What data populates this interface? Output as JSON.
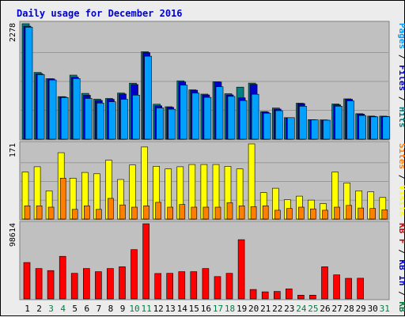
{
  "title": "Daily usage for December 2016",
  "colors": {
    "weekday": "#000000",
    "weekend": "#008040",
    "separator": "#000000"
  },
  "chart_data": [
    {
      "type": "bar",
      "categories": [
        "1",
        "2",
        "3",
        "4",
        "5",
        "6",
        "7",
        "8",
        "9",
        "10",
        "11",
        "12",
        "13",
        "14",
        "15",
        "16",
        "17",
        "18",
        "19",
        "20",
        "21",
        "22",
        "23",
        "24",
        "25",
        "26",
        "27",
        "28",
        "29",
        "30",
        "31"
      ],
      "y_max_label": "2278",
      "ylim": [
        0,
        2278
      ],
      "grid": true,
      "side_label": [
        {
          "text": "Pages",
          "color": "#00a0ff"
        },
        {
          "text": " / ",
          "color": "#000000"
        },
        {
          "text": "Files",
          "color": "#0000cc"
        },
        {
          "text": " / ",
          "color": "#000000"
        },
        {
          "text": "Hits",
          "color": "#008080"
        }
      ],
      "series": [
        {
          "name": "Hits",
          "color": "#008080",
          "values": [
            2278,
            1317,
            1194,
            840,
            1264,
            904,
            789,
            803,
            909,
            1104,
            1725,
            689,
            640,
            1151,
            973,
            889,
            1131,
            897,
            1027,
            1106,
            545,
            615,
            424,
            710,
            386,
            381,
            695,
            795,
            503,
            456,
            454
          ]
        },
        {
          "name": "Files",
          "color": "#0000cc",
          "values": [
            2230,
            1292,
            1189,
            833,
            1223,
            866,
            765,
            786,
            893,
            1078,
            1708,
            659,
            628,
            1128,
            966,
            872,
            1128,
            873,
            816,
            1082,
            534,
            593,
            419,
            702,
            380,
            375,
            677,
            788,
            495,
            450,
            449
          ]
        },
        {
          "name": "Pages",
          "color": "#00a0ff",
          "values": [
            2209,
            1274,
            1168,
            823,
            1197,
            804,
            712,
            738,
            786,
            869,
            1636,
            617,
            592,
            1065,
            908,
            826,
            1034,
            844,
            762,
            887,
            511,
            561,
            424,
            650,
            380,
            375,
            651,
            753,
            466,
            440,
            443
          ]
        }
      ]
    },
    {
      "type": "bar",
      "categories": [
        "1",
        "2",
        "3",
        "4",
        "5",
        "6",
        "7",
        "8",
        "9",
        "10",
        "11",
        "12",
        "13",
        "14",
        "15",
        "16",
        "17",
        "18",
        "19",
        "20",
        "21",
        "22",
        "23",
        "24",
        "25",
        "26",
        "27",
        "28",
        "29",
        "30",
        "31"
      ],
      "y_max_label": "171",
      "ylim": [
        0,
        171
      ],
      "grid": true,
      "side_label": [
        {
          "text": "Sites",
          "color": "#ff8000"
        },
        {
          "text": " / ",
          "color": "#000000"
        },
        {
          "text": "Visits",
          "color": "#ffff00"
        }
      ],
      "series": [
        {
          "name": "Visits",
          "color": "#ffff00",
          "values": [
            107,
            119,
            64,
            151,
            93,
            106,
            103,
            134,
            90,
            123,
            164,
            120,
            114,
            119,
            124,
            124,
            124,
            120,
            114,
            171,
            60,
            70,
            44,
            52,
            43,
            35,
            107,
            82,
            64,
            62,
            49
          ]
        },
        {
          "name": "Sites",
          "color": "#ff8000",
          "values": [
            30,
            30,
            27,
            93,
            22,
            30,
            22,
            47,
            32,
            27,
            30,
            38,
            27,
            33,
            27,
            27,
            27,
            37,
            30,
            28,
            30,
            20,
            24,
            27,
            23,
            20,
            27,
            31,
            25,
            24,
            21
          ]
        }
      ]
    },
    {
      "type": "bar",
      "categories": [
        "1",
        "2",
        "3",
        "4",
        "5",
        "6",
        "7",
        "8",
        "9",
        "10",
        "11",
        "12",
        "13",
        "14",
        "15",
        "16",
        "17",
        "18",
        "19",
        "20",
        "21",
        "22",
        "23",
        "24",
        "25",
        "26",
        "27",
        "28",
        "29",
        "30",
        "31"
      ],
      "y_max_label": "98614",
      "ylim": [
        0,
        98614
      ],
      "grid": false,
      "side_label": [
        {
          "text": "KB F",
          "color": "#cc0000"
        },
        {
          "text": " / ",
          "color": "#000000"
        },
        {
          "text": "KB In",
          "color": "#0000cc"
        },
        {
          "text": " / ",
          "color": "#000000"
        },
        {
          "text": "KB Out",
          "color": "#008040"
        }
      ],
      "series": [
        {
          "name": "KB F",
          "color": "#ff0000",
          "values": [
            47700,
            39900,
            37200,
            55800,
            33500,
            39900,
            35700,
            39900,
            42100,
            64700,
            98614,
            33300,
            33500,
            35700,
            35700,
            39900,
            29300,
            33500,
            77700,
            12400,
            9200,
            9800,
            13100,
            4900,
            4900,
            42100,
            31600,
            27000,
            27100,
            0,
            0
          ]
        }
      ]
    }
  ]
}
